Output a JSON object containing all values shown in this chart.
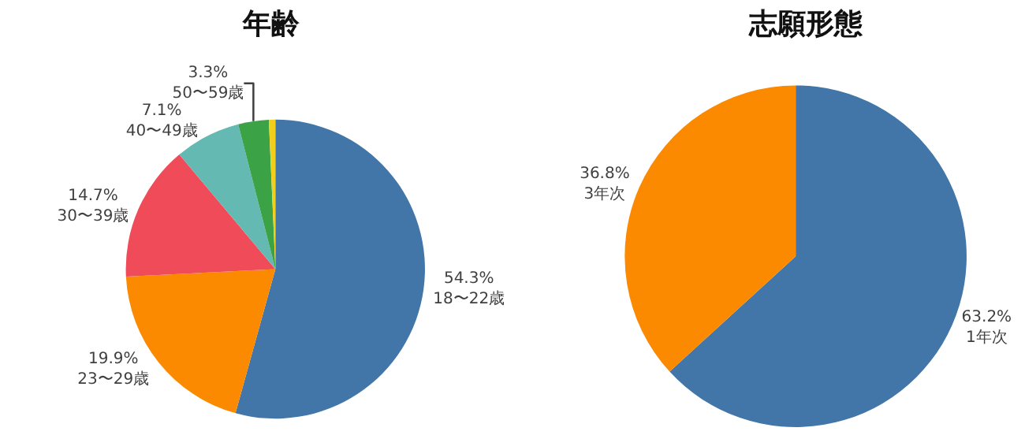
{
  "chart_data": [
    {
      "type": "pie",
      "title": "年齢",
      "categories": [
        "18〜22歳",
        "23〜29歳",
        "30〜39歳",
        "40〜49歳",
        "50〜59歳",
        null
      ],
      "values": [
        54.3,
        19.9,
        14.7,
        7.1,
        3.3,
        0.7
      ],
      "value_labels": [
        "54.3%",
        "19.9%",
        "14.7%",
        "7.1%",
        "3.3%",
        null
      ],
      "colors": [
        "#4376a8",
        "#fb8a00",
        "#ef4b58",
        "#64b9b2",
        "#3ba246",
        "#f3cf1d"
      ]
    },
    {
      "type": "pie",
      "title": "志願形態",
      "categories": [
        "1年次",
        "3年次"
      ],
      "values": [
        63.2,
        36.8
      ],
      "value_labels": [
        "63.2%",
        "36.8%"
      ],
      "colors": [
        "#4376a8",
        "#fb8a00"
      ]
    }
  ]
}
